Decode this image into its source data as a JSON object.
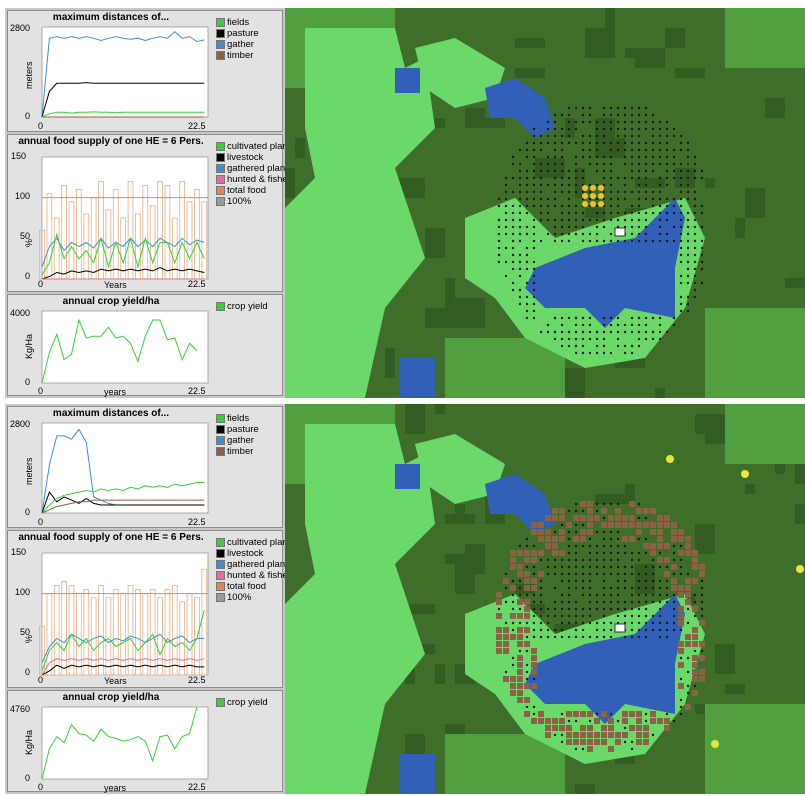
{
  "colors": {
    "forest": "#3e6e2a",
    "forest_dark": "#325c22",
    "grass_mid": "#50a040",
    "meadow": "#6ad96a",
    "water": "#3060b8",
    "fields": "#39cf39",
    "pasture": "#000000",
    "gather": "#3f8fd0",
    "timber": "#8b6244",
    "hunted": "#e06fa0",
    "totalfood": "#e8854a",
    "hundred": "#9a9a9a"
  },
  "panels": [
    {
      "distances": {
        "title": "maximum distances of...",
        "ylabel": "meters",
        "ymax_label": "2800",
        "ymin_label": "0",
        "xmin_label": "0",
        "xmax_label": "22.5",
        "legend": [
          "fields",
          "pasture",
          "gather",
          "timber"
        ]
      },
      "food": {
        "title": "annual food supply of one HE = 6 Pers.",
        "ylabel": "%",
        "y_labels": [
          "150",
          "100",
          "50",
          "0"
        ],
        "xlabel": "Years",
        "xmin_label": "0",
        "xmax_label": "22.5",
        "legend": [
          "cultivated plants",
          "livestock",
          "gathered plants",
          "hunted & fished",
          "total food",
          "100%"
        ]
      },
      "yield": {
        "title": "annual crop yield/ha",
        "ylabel": "Kg/Ha",
        "ymax_label": "4000",
        "ymin_label": "0",
        "xlabel": "years",
        "xmin_label": "0",
        "xmax_label": "22.5",
        "legend": [
          "crop yield"
        ]
      }
    },
    {
      "distances": {
        "title": "maximum distances of...",
        "ylabel": "meters",
        "ymax_label": "2800",
        "ymin_label": "0",
        "xmin_label": "0",
        "xmax_label": "22.5",
        "legend": [
          "fields",
          "pasture",
          "gather",
          "timber"
        ]
      },
      "food": {
        "title": "annual food supply of one HE = 6 Pers.",
        "ylabel": "%",
        "y_labels": [
          "150",
          "100",
          "50",
          "0"
        ],
        "xlabel": "Years",
        "xmin_label": "0",
        "xmax_label": "22.5",
        "legend": [
          "cultivated plants",
          "livestock",
          "gathered plants",
          "hunted & fished",
          "total food",
          "100%"
        ]
      },
      "yield": {
        "title": "annual crop yield/ha",
        "ylabel": "Kg/Ha",
        "ymax_label": "4760",
        "ymin_label": "0",
        "xlabel": "years",
        "xmin_label": "0",
        "xmax_label": "22.5",
        "legend": [
          "crop yield"
        ]
      }
    }
  ],
  "chart_data": [
    {
      "type": "line",
      "panel": 0,
      "plot": "distances",
      "title": "maximum distances of...",
      "ylabel": "meters",
      "xlim": [
        0,
        22.5
      ],
      "ylim": [
        0,
        2800
      ],
      "x": [
        0,
        1,
        2,
        3,
        4,
        5,
        6,
        7,
        8,
        9,
        10,
        11,
        12,
        13,
        14,
        15,
        16,
        17,
        18,
        19,
        20,
        21,
        22
      ],
      "series": [
        {
          "name": "gather",
          "values": [
            0,
            2450,
            2500,
            2450,
            2500,
            2450,
            2500,
            2450,
            2380,
            2450,
            2500,
            2450,
            2420,
            2450,
            2380,
            2450,
            2500,
            2450,
            2650,
            2450,
            2500,
            2350,
            2400
          ]
        },
        {
          "name": "pasture",
          "values": [
            0,
            800,
            1050,
            1050,
            1050,
            1050,
            1070,
            1050,
            1050,
            1050,
            1050,
            1050,
            1050,
            1050,
            1050,
            1050,
            1050,
            1050,
            1050,
            1050,
            1050,
            1050,
            1050
          ]
        },
        {
          "name": "fields",
          "values": [
            0,
            100,
            150,
            150,
            120,
            150,
            150,
            160,
            150,
            150,
            130,
            150,
            150,
            150,
            150,
            150,
            150,
            150,
            150,
            150,
            150,
            150,
            150
          ]
        },
        {
          "name": "timber",
          "values": [
            0,
            0,
            0,
            0,
            0,
            0,
            0,
            0,
            0,
            0,
            0,
            0,
            0,
            0,
            0,
            0,
            0,
            0,
            0,
            0,
            0,
            0,
            0
          ]
        }
      ]
    },
    {
      "type": "bar+line",
      "panel": 0,
      "plot": "food",
      "title": "annual food supply of one HE = 6 Pers.",
      "xlabel": "Years",
      "ylabel": "%",
      "xlim": [
        0,
        22.5
      ],
      "ylim": [
        0,
        150
      ],
      "x": [
        0,
        1,
        2,
        3,
        4,
        5,
        6,
        7,
        8,
        9,
        10,
        11,
        12,
        13,
        14,
        15,
        16,
        17,
        18,
        19,
        20,
        21,
        22
      ],
      "series": [
        {
          "name": "total food",
          "values": [
            60,
            105,
            75,
            115,
            95,
            110,
            80,
            100,
            120,
            85,
            110,
            75,
            120,
            80,
            115,
            90,
            120,
            115,
            75,
            120,
            95,
            110,
            95
          ]
        },
        {
          "name": "100%",
          "values": [
            100,
            100,
            100,
            100,
            100,
            100,
            100,
            100,
            100,
            100,
            100,
            100,
            100,
            100,
            100,
            100,
            100,
            100,
            100,
            100,
            100,
            100,
            100
          ]
        },
        {
          "name": "gathered plants",
          "values": [
            15,
            40,
            50,
            35,
            45,
            40,
            45,
            38,
            50,
            38,
            45,
            40,
            50,
            40,
            48,
            40,
            50,
            45,
            40,
            50,
            42,
            48,
            45
          ]
        },
        {
          "name": "cultivated plants",
          "values": [
            5,
            20,
            55,
            25,
            40,
            25,
            35,
            20,
            50,
            15,
            45,
            20,
            50,
            15,
            50,
            20,
            45,
            45,
            20,
            45,
            25,
            45,
            25
          ]
        },
        {
          "name": "livestock",
          "values": [
            0,
            3,
            8,
            6,
            10,
            8,
            10,
            8,
            12,
            10,
            12,
            10,
            12,
            10,
            12,
            10,
            14,
            10,
            12,
            10,
            12,
            10,
            8
          ]
        },
        {
          "name": "hunted & fished",
          "values": [
            0,
            0,
            0,
            0,
            0,
            0,
            0,
            0,
            0,
            0,
            0,
            0,
            0,
            0,
            0,
            0,
            0,
            0,
            0,
            0,
            0,
            0,
            0
          ]
        }
      ]
    },
    {
      "type": "line",
      "panel": 0,
      "plot": "yield",
      "title": "annual crop yield/ha",
      "xlabel": "years",
      "ylabel": "Kg/Ha",
      "xlim": [
        0,
        22.5
      ],
      "ylim": [
        0,
        4000
      ],
      "x": [
        0,
        1,
        2,
        3,
        4,
        5,
        6,
        7,
        8,
        9,
        10,
        11,
        12,
        13,
        14,
        15,
        16,
        17,
        18,
        19,
        20,
        21
      ],
      "series": [
        {
          "name": "crop yield",
          "values": [
            0,
            1700,
            2700,
            1300,
            1600,
            3500,
            2500,
            2600,
            2600,
            3100,
            2500,
            2600,
            2200,
            1200,
            2600,
            3500,
            3500,
            2400,
            2500,
            1300,
            2200,
            1800
          ]
        }
      ]
    },
    {
      "type": "line",
      "panel": 1,
      "plot": "distances",
      "title": "maximum distances of...",
      "ylabel": "meters",
      "xlim": [
        0,
        22.5
      ],
      "ylim": [
        0,
        2800
      ],
      "x": [
        0,
        1,
        2,
        3,
        4,
        5,
        6,
        7,
        8,
        9,
        10,
        11,
        12,
        13,
        14,
        15,
        16,
        17,
        18,
        19,
        20,
        21,
        22
      ],
      "series": [
        {
          "name": "gather",
          "values": [
            0,
            1500,
            2400,
            2400,
            2300,
            2600,
            2200,
            500,
            400,
            300,
            250,
            250,
            250,
            250,
            250,
            250,
            250,
            250,
            250,
            250,
            250,
            250,
            250
          ]
        },
        {
          "name": "pasture",
          "values": [
            0,
            650,
            350,
            500,
            400,
            300,
            450,
            300,
            250,
            250,
            250,
            250,
            250,
            250,
            250,
            250,
            250,
            250,
            250,
            250,
            250,
            250,
            250
          ]
        },
        {
          "name": "fields",
          "values": [
            0,
            250,
            450,
            550,
            600,
            650,
            700,
            650,
            750,
            700,
            750,
            700,
            800,
            750,
            850,
            800,
            850,
            800,
            900,
            850,
            900,
            950,
            950
          ]
        },
        {
          "name": "timber",
          "values": [
            0,
            100,
            200,
            250,
            300,
            350,
            350,
            400,
            400,
            400,
            400,
            400,
            400,
            400,
            400,
            400,
            400,
            400,
            400,
            400,
            400,
            400,
            400
          ]
        }
      ]
    },
    {
      "type": "bar+line",
      "panel": 1,
      "plot": "food",
      "title": "annual food supply of one HE = 6 Pers.",
      "xlabel": "Years",
      "ylabel": "%",
      "xlim": [
        0,
        22.5
      ],
      "ylim": [
        0,
        150
      ],
      "x": [
        0,
        1,
        2,
        3,
        4,
        5,
        6,
        7,
        8,
        9,
        10,
        11,
        12,
        13,
        14,
        15,
        16,
        17,
        18,
        19,
        20,
        21,
        22
      ],
      "series": [
        {
          "name": "total food",
          "values": [
            60,
            100,
            110,
            115,
            110,
            100,
            105,
            95,
            110,
            95,
            105,
            100,
            110,
            105,
            100,
            105,
            95,
            105,
            110,
            90,
            100,
            95,
            130
          ]
        },
        {
          "name": "100%",
          "values": [
            100,
            100,
            100,
            100,
            100,
            100,
            100,
            100,
            100,
            100,
            100,
            100,
            100,
            100,
            100,
            100,
            100,
            100,
            100,
            100,
            100,
            100,
            100
          ]
        },
        {
          "name": "gathered plants",
          "values": [
            15,
            35,
            45,
            40,
            50,
            45,
            40,
            45,
            48,
            40,
            45,
            42,
            48,
            45,
            40,
            45,
            50,
            40,
            45,
            48,
            40,
            45,
            45
          ]
        },
        {
          "name": "cultivated plants",
          "values": [
            5,
            30,
            40,
            30,
            50,
            35,
            45,
            30,
            40,
            45,
            35,
            40,
            45,
            30,
            40,
            50,
            25,
            45,
            35,
            40,
            30,
            45,
            80
          ]
        },
        {
          "name": "livestock",
          "values": [
            0,
            5,
            12,
            8,
            12,
            10,
            12,
            10,
            12,
            10,
            12,
            10,
            12,
            10,
            12,
            10,
            12,
            10,
            12,
            10,
            12,
            10,
            10
          ]
        },
        {
          "name": "hunted & fished",
          "values": [
            0,
            15,
            20,
            18,
            20,
            18,
            20,
            18,
            20,
            18,
            20,
            18,
            20,
            18,
            20,
            18,
            20,
            18,
            20,
            18,
            20,
            18,
            20
          ]
        }
      ]
    },
    {
      "type": "line",
      "panel": 1,
      "plot": "yield",
      "title": "annual crop yield/ha",
      "xlabel": "years",
      "ylabel": "Kg/Ha",
      "xlim": [
        0,
        22.5
      ],
      "ylim": [
        0,
        4760
      ],
      "x": [
        0,
        1,
        2,
        3,
        4,
        5,
        6,
        7,
        8,
        9,
        10,
        11,
        12,
        13,
        14,
        15,
        16,
        17,
        18,
        19,
        20,
        21
      ],
      "series": [
        {
          "name": "crop yield",
          "values": [
            0,
            2000,
            2800,
            2400,
            3600,
            3000,
            2900,
            2500,
            3300,
            2800,
            2700,
            2500,
            2600,
            2800,
            2500,
            1200,
            2800,
            2900,
            2000,
            2800,
            3000,
            4760
          ]
        }
      ]
    }
  ]
}
